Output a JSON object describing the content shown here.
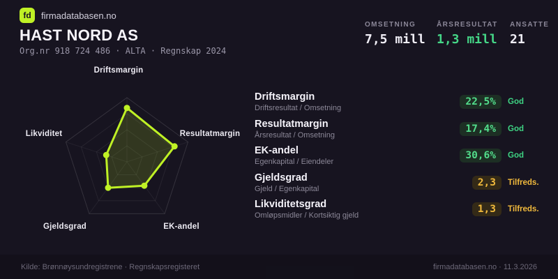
{
  "brand": {
    "logo_text": "fd",
    "name": "firmadatabasen.no"
  },
  "header": {
    "title": "HAST NORD AS",
    "org_line": "Org.nr 918 724 486  ·  ALTA  ·  Regnskap 2024"
  },
  "stats": [
    {
      "label": "OMSETNING",
      "value": "7,5 mill"
    },
    {
      "label": "ÅRSRESULTAT",
      "value": "1,3 mill"
    },
    {
      "label": "ANSATTE",
      "value": "21"
    }
  ],
  "chart_data": {
    "type": "radar",
    "axes": [
      "Driftsmargin",
      "Resultatmargin",
      "EK-andel",
      "Gjeldsgrad",
      "Likviditet"
    ],
    "values_normalized": [
      0.84,
      0.78,
      0.46,
      0.5,
      0.34
    ],
    "values_display": [
      "22,5%",
      "17,4%",
      "30,6%",
      "2,3",
      "1,3"
    ],
    "rings": [
      0.25,
      0.5,
      0.75,
      1
    ],
    "stroke_color": "#bff125",
    "fill_color": "rgba(191,241,37,0.16)",
    "dot_radius": 4.5,
    "legend_position": "none",
    "title": ""
  },
  "metrics": [
    {
      "title": "Driftsmargin",
      "formula": "Driftsresultat / Omsetning",
      "value": "22,5%",
      "status": "God",
      "level": "good"
    },
    {
      "title": "Resultatmargin",
      "formula": "Årsresultat / Omsetning",
      "value": "17,4%",
      "status": "God",
      "level": "good"
    },
    {
      "title": "EK-andel",
      "formula": "Egenkapital / Eiendeler",
      "value": "30,6%",
      "status": "God",
      "level": "good"
    },
    {
      "title": "Gjeldsgrad",
      "formula": "Gjeld / Egenkapital",
      "value": "2,3",
      "status": "Tilfreds.",
      "level": "warn"
    },
    {
      "title": "Likviditetsgrad",
      "formula": "Omløpsmidler / Kortsiktig gjeld",
      "value": "1,3",
      "status": "Tilfreds.",
      "level": "warn"
    }
  ],
  "footer": {
    "source": "Kilde: Brønnøysundregistrene · Regnskapsregisteret",
    "brand_date": "firmadatabasen.no · 11.3.2026"
  },
  "colors": {
    "background": "#171420",
    "accent_green_yellow": "#bff125",
    "positive_green": "#45d687",
    "warning_amber": "#f0b93c",
    "pill_good_bg": "#1d2f24",
    "pill_warn_bg": "#342a17"
  }
}
